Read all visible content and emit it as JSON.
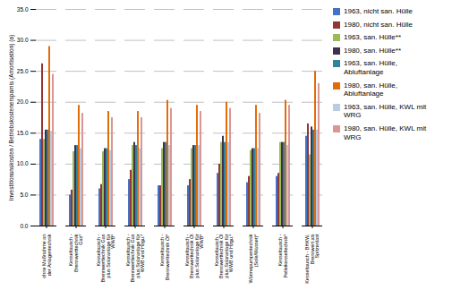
{
  "chart_data": {
    "type": "bar",
    "categories": [
      "ohne Maßnahme an\nder Anlagentechnik",
      "Kesseltausch -\nBrennwerttechnik\nGas*",
      "Kesseltausch -\nBrennwerttechnik Gas\nplus Solaranlage für\nWWB*",
      "Kesseltausch -\nBrennwerttechnik Gas\nplus Solaranlage für\nWWB und Hzgu.*",
      "Kesseltausch -\nBrennwerttechnik Öl*",
      "Kesseltausch -\nBrennwerttechnik Öl\nplus Solaranlage für\nWWB*",
      "Kesseltausch -\nBrennwerttechnik Öl\nplus Solaranlage für\nWWB und Hzgu.*",
      "Wärmepumpentechnik\n(Sole/Wasser)*",
      "Kesseltausch -\nPelletkesseltechnik*",
      "Kesseltausch - BHKW,\nBrennwert als\nSpitzenlast"
    ],
    "series": [
      {
        "name": "1963, nicht san. Hülle",
        "color": "#4472c4",
        "values": [
          14.0,
          5.0,
          6.0,
          7.5,
          6.5,
          6.5,
          8.5,
          7.0,
          8.0,
          14.5
        ]
      },
      {
        "name": "1980, nicht san. Hülle",
        "color": "#943634",
        "values": [
          26.2,
          5.8,
          6.7,
          9.0,
          6.5,
          7.5,
          10.0,
          8.0,
          8.5,
          16.5
        ]
      },
      {
        "name": "1963, san. Hülle**",
        "color": "#9bbb59",
        "values": [
          14.0,
          12.0,
          12.0,
          13.0,
          12.5,
          12.5,
          13.5,
          12.2,
          13.5,
          11.5
        ]
      },
      {
        "name": "1980, san. Hülle**",
        "color": "#403151",
        "values": [
          15.5,
          13.0,
          12.5,
          13.5,
          13.5,
          13.0,
          14.5,
          12.5,
          13.5,
          16.0
        ]
      },
      {
        "name": "1963, san. Hülle,\nAbluftanlage",
        "color": "#31849b",
        "values": [
          15.5,
          13.0,
          12.5,
          13.0,
          13.5,
          13.0,
          13.5,
          12.5,
          13.5,
          15.5
        ]
      },
      {
        "name": "1980, san. Hülle,\nAbluftanlage",
        "color": "#e36c09",
        "values": [
          29.0,
          19.5,
          18.5,
          18.5,
          20.3,
          19.5,
          20.0,
          19.5,
          20.3,
          25.0
        ]
      },
      {
        "name": "1963, san. Hülle, KWL mit\nWRG",
        "color": "#b8cce4",
        "values": [
          15.3,
          12.5,
          12.2,
          12.5,
          13.0,
          13.0,
          13.5,
          12.5,
          13.0,
          15.5
        ]
      },
      {
        "name": "1980, san. Hülle, KWL mit\nWRG",
        "color": "#d99694",
        "values": [
          24.5,
          18.2,
          17.5,
          17.5,
          19.0,
          18.5,
          19.0,
          18.2,
          19.5,
          23.0
        ]
      }
    ],
    "ylabel": "Investitionsnskosten / Betriebskostenerspamis (Amortisation) (a)",
    "ylim": [
      0,
      35
    ],
    "yticks": [
      {
        "value": 0,
        "label": "0.0"
      },
      {
        "value": 5,
        "label": "5.0"
      },
      {
        "value": 10,
        "label": "10.0"
      },
      {
        "value": 15,
        "label": "15.0"
      },
      {
        "value": 20,
        "label": "20.0"
      },
      {
        "value": 25,
        "label": "25.0"
      },
      {
        "value": 30,
        "label": "30.0"
      },
      {
        "value": 35,
        "label": "35.0"
      }
    ],
    "grid": true,
    "legend": "right"
  }
}
